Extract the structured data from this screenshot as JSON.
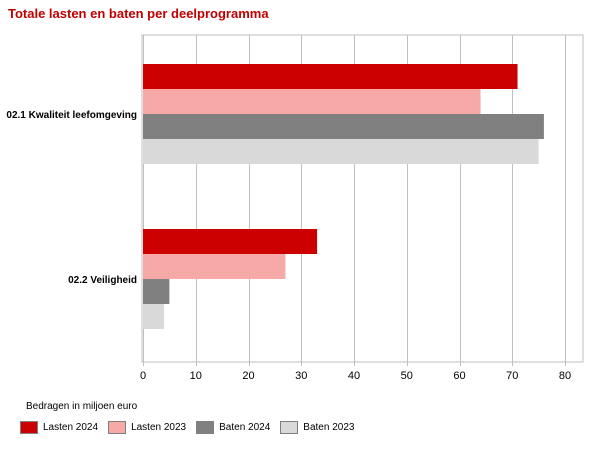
{
  "chart_data": {
    "type": "bar",
    "orientation": "horizontal",
    "title": "Totale lasten en baten per deelprogramma",
    "unit_note": "Bedragen in miljoen euro",
    "categories": [
      "02.1 Kwaliteit leefomgeving",
      "02.2 Veiligheid"
    ],
    "series": [
      {
        "name": "Lasten 2024",
        "color": "#cc0000",
        "values": [
          71,
          33
        ]
      },
      {
        "name": "Lasten 2023",
        "color": "#f7a9a8",
        "values": [
          64,
          27
        ]
      },
      {
        "name": "Baten 2024",
        "color": "#808080",
        "values": [
          76,
          5
        ]
      },
      {
        "name": "Baten 2023",
        "color": "#d9d9d9",
        "values": [
          75,
          4
        ]
      }
    ],
    "xlim": [
      0,
      80
    ],
    "xticks": [
      0,
      10,
      20,
      30,
      40,
      50,
      60,
      70,
      80
    ],
    "grid": true,
    "legend_position": "bottom-left"
  }
}
